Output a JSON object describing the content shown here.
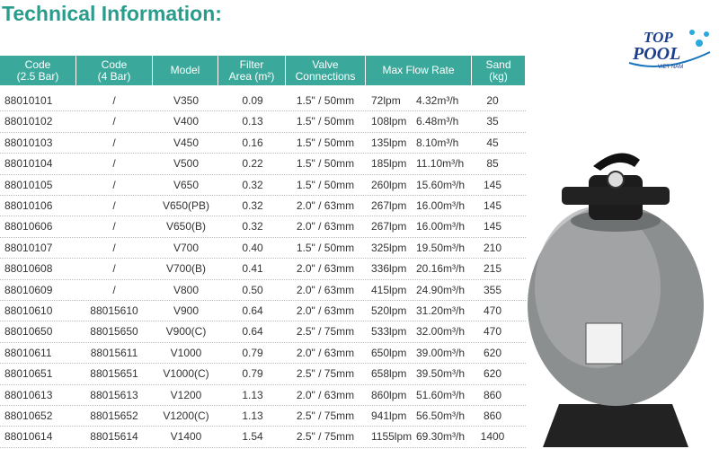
{
  "title": "Technical Information:",
  "logo": {
    "line1": "TOP",
    "line2": "POOL",
    "line3": "VIET NAM"
  },
  "table": {
    "header": [
      [
        "Code",
        "(2.5 Bar)"
      ],
      [
        "Code",
        "(4 Bar)"
      ],
      [
        "Model"
      ],
      [
        "Filter",
        "Area (m²)"
      ],
      [
        "Valve",
        "Connections"
      ],
      [
        "Max Flow Rate"
      ],
      [
        "Sand",
        "(kg)"
      ]
    ],
    "rows": [
      [
        "88010101",
        "/",
        "V350",
        "0.09",
        "1.5\" / 50mm",
        "72lpm",
        "4.32m³/h",
        "20"
      ],
      [
        "88010102",
        "/",
        "V400",
        "0.13",
        "1.5\" / 50mm",
        "108lpm",
        "6.48m³/h",
        "35"
      ],
      [
        "88010103",
        "/",
        "V450",
        "0.16",
        "1.5\" / 50mm",
        "135lpm",
        "8.10m³/h",
        "45"
      ],
      [
        "88010104",
        "/",
        "V500",
        "0.22",
        "1.5\" / 50mm",
        "185lpm",
        "11.10m³/h",
        "85"
      ],
      [
        "88010105",
        "/",
        "V650",
        "0.32",
        "1.5\" / 50mm",
        "260lpm",
        "15.60m³/h",
        "145"
      ],
      [
        "88010106",
        "/",
        "V650(PB)",
        "0.32",
        "2.0\" / 63mm",
        "267lpm",
        "16.00m³/h",
        "145"
      ],
      [
        "88010606",
        "/",
        "V650(B)",
        "0.32",
        "2.0\" / 63mm",
        "267lpm",
        "16.00m³/h",
        "145"
      ],
      [
        "88010107",
        "/",
        "V700",
        "0.40",
        "1.5\" / 50mm",
        "325lpm",
        "19.50m³/h",
        "210"
      ],
      [
        "88010608",
        "/",
        "V700(B)",
        "0.41",
        "2.0\" / 63mm",
        "336lpm",
        "20.16m³/h",
        "215"
      ],
      [
        "88010609",
        "/",
        "V800",
        "0.50",
        "2.0\" / 63mm",
        "415lpm",
        "24.90m³/h",
        "355"
      ],
      [
        "88010610",
        "88015610",
        "V900",
        "0.64",
        "2.0\" / 63mm",
        "520lpm",
        "31.20m³/h",
        "470"
      ],
      [
        "88010650",
        "88015650",
        "V900(C)",
        "0.64",
        "2.5\" / 75mm",
        "533lpm",
        "32.00m³/h",
        "470"
      ],
      [
        "88010611",
        "88015611",
        "V1000",
        "0.79",
        "2.0\" / 63mm",
        "650lpm",
        "39.00m³/h",
        "620"
      ],
      [
        "88010651",
        "88015651",
        "V1000(C)",
        "0.79",
        "2.5\" / 75mm",
        "658lpm",
        "39.50m³/h",
        "620"
      ],
      [
        "88010613",
        "88015613",
        "V1200",
        "1.13",
        "2.0\" / 63mm",
        "860lpm",
        "51.60m³/h",
        "860"
      ],
      [
        "88010652",
        "88015652",
        "V1200(C)",
        "1.13",
        "2.5\" / 75mm",
        "941lpm",
        "56.50m³/h",
        "860"
      ],
      [
        "88010614",
        "88015614",
        "V1400",
        "1.54",
        "2.5\" / 75mm",
        "1155lpm",
        "69.30m³/h",
        "1400"
      ]
    ]
  }
}
